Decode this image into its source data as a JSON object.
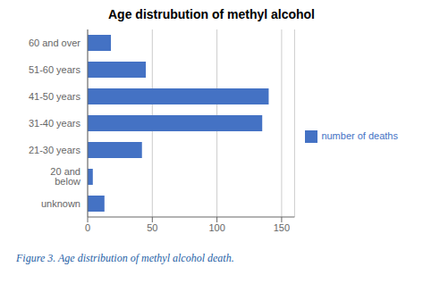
{
  "chart_data": {
    "type": "bar",
    "title": "Age distrubution of methyl alcohol",
    "orientation": "horizontal",
    "categories": [
      "unknown",
      "20 and below",
      "21-30 years",
      "31-40 years",
      "41-50 years",
      "51-60 years",
      "60 and over"
    ],
    "series": [
      {
        "name": "number of deaths",
        "color": "#4472C4",
        "values": [
          13,
          4,
          42,
          135,
          140,
          45,
          18
        ]
      }
    ],
    "xlim": [
      0,
      160
    ],
    "xticks": [
      0,
      50,
      100,
      150
    ],
    "grid": true,
    "legend": "right",
    "annotations": [
      {
        "text": "Figure 3. Age distribution of methyl alcohol death.",
        "color": "#1f5fa6"
      }
    ]
  }
}
